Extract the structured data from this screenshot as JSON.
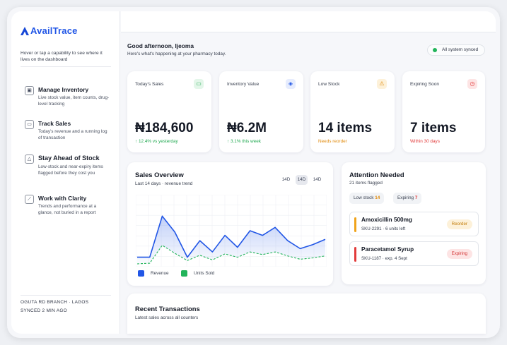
{
  "brand": {
    "logo_text": "AvailTrace"
  },
  "sidebar": {
    "hint": "Hover or tap a capability to see where it lives on the dashboard",
    "capabilities": [
      {
        "icon": "box-icon",
        "title": "Manage Inventory",
        "desc": "Live stock value, item counts, drug-level tracking"
      },
      {
        "icon": "cash-icon",
        "title": "Track Sales",
        "desc": "Today's revenue and a running log of transaction"
      },
      {
        "icon": "warning-icon",
        "title": "Stay Ahead of Stock",
        "desc": "Low-stock and near-expiry items flagged before they cost you"
      },
      {
        "icon": "chart-icon",
        "title": "Work with Clarity",
        "desc": "Trends and performance at a glance, not buried in a report"
      }
    ],
    "branch": "OGUTA RD BRANCH · LAGOS",
    "synced": "SYNCED 2 MIN AGO"
  },
  "header": {
    "greeting": "Good afternoon, Ijeoma",
    "subtitle": "Here's what's happening at your pharmacy today.",
    "status": "All system synced"
  },
  "stats": [
    {
      "label": "Today's Sales",
      "value": "₦184,600",
      "sub": "↑ 12.4% vs yesterday",
      "icon": "cash-icon",
      "accent": "#1fa84f",
      "badge_bg": "#e3f6e9"
    },
    {
      "label": "Inventory Value",
      "value": "₦6.2M",
      "sub": "↑ 3.1% this week",
      "icon": "box-icon",
      "accent": "#1fa84f",
      "badge_bg": "#e6ecfd"
    },
    {
      "label": "Low Stock",
      "value": "14 items",
      "sub": "Needs reorder",
      "icon": "warning-icon",
      "accent": "#e08a0b",
      "badge_bg": "#fdf1d9"
    },
    {
      "label": "Expiring Soon",
      "value": "7 items",
      "sub": "Within 30 days",
      "icon": "clock-icon",
      "accent": "#e23b3b",
      "badge_bg": "#fde4e4"
    }
  ],
  "sales_overview": {
    "title": "Sales Overview",
    "subtitle": "Last 14 days · revenue trend",
    "ranges": [
      "14D",
      "14D",
      "14D"
    ],
    "active_range": 1,
    "legend": [
      "Revenue",
      "Units Sold"
    ]
  },
  "chart_data": {
    "type": "line",
    "series": [
      {
        "name": "Revenue",
        "color": "#2156e6",
        "values": [
          0.1,
          0.1,
          0.72,
          0.48,
          0.1,
          0.35,
          0.18,
          0.43,
          0.25,
          0.5,
          0.43,
          0.55,
          0.35,
          0.23,
          0.29,
          0.37
        ]
      },
      {
        "name": "Units Sold",
        "color": "#22b45a",
        "values": [
          0.0,
          0.01,
          0.28,
          0.16,
          0.05,
          0.13,
          0.06,
          0.15,
          0.1,
          0.18,
          0.14,
          0.18,
          0.12,
          0.07,
          0.09,
          0.12
        ]
      }
    ],
    "ylim": [
      0,
      1
    ],
    "grid": true
  },
  "attention": {
    "title": "Attention Needed",
    "subtitle": "21 items flagged",
    "chips": [
      {
        "label": "Low stock",
        "count": "14",
        "color": "#e08a0b"
      },
      {
        "label": "Expiring",
        "count": "7",
        "color": "#e23b3b"
      }
    ],
    "items": [
      {
        "name": "Amoxicillin 500mg",
        "meta": "SKU-2291 · 6 units left",
        "action": "Reorder",
        "bar": "#f0a31a",
        "pill_bg": "#fdf1d9",
        "pill_fg": "#c17a06"
      },
      {
        "name": "Paracetamol Syrup",
        "meta": "SKU-1187 · exp. 4 Sept",
        "action": "Expiring",
        "bar": "#e23b3b",
        "pill_bg": "#fde4e4",
        "pill_fg": "#d23030"
      }
    ]
  },
  "transactions": {
    "title": "Recent Transactions",
    "subtitle": "Latest sales across all counters"
  }
}
